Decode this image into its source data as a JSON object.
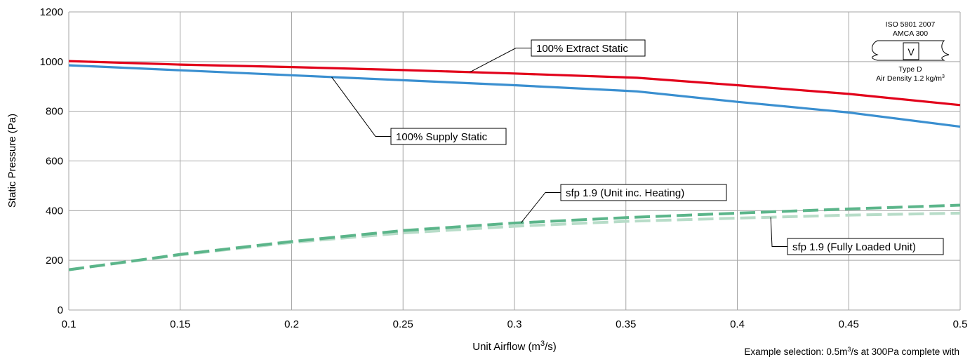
{
  "chart_data": {
    "type": "line",
    "xlabel": "Unit Airflow (m",
    "xlabel_sup": "3",
    "xlabel_suffix": "/s)",
    "ylabel": "Static Pressure (Pa)",
    "xlim": [
      0.1,
      0.5
    ],
    "ylim": [
      0,
      1200
    ],
    "x_ticks": [
      "0.1",
      "0.15",
      "0.2",
      "0.25",
      "0.3",
      "0.35",
      "0.4",
      "0.45",
      "0.5"
    ],
    "y_ticks": [
      "0",
      "200",
      "400",
      "600",
      "800",
      "1000",
      "1200"
    ],
    "grid": true,
    "series": [
      {
        "name": "100% Extract Static",
        "color": "#e2001a",
        "dash": "solid",
        "x": [
          0.1,
          0.15,
          0.2,
          0.25,
          0.3,
          0.355,
          0.4,
          0.45,
          0.5
        ],
        "y": [
          1002,
          988,
          978,
          966,
          952,
          935,
          905,
          870,
          825
        ]
      },
      {
        "name": "100% Supply Static",
        "color": "#3a8fd0",
        "dash": "solid",
        "x": [
          0.1,
          0.15,
          0.2,
          0.25,
          0.3,
          0.355,
          0.4,
          0.45,
          0.5
        ],
        "y": [
          985,
          965,
          945,
          925,
          905,
          880,
          838,
          795,
          738
        ]
      },
      {
        "name": "sfp 1.9 (Fully Loaded Unit)",
        "color": "#b7dcc8",
        "dash": "dashed",
        "x": [
          0.1,
          0.15,
          0.2,
          0.25,
          0.3,
          0.35,
          0.4,
          0.45,
          0.5
        ],
        "y": [
          162,
          222,
          272,
          310,
          337,
          357,
          370,
          382,
          390
        ]
      },
      {
        "name": "sfp 1.9 (Unit inc. Heating)",
        "color": "#5bb58a",
        "dash": "dashed",
        "x": [
          0.1,
          0.15,
          0.2,
          0.25,
          0.3,
          0.35,
          0.4,
          0.45,
          0.5
        ],
        "y": [
          162,
          224,
          276,
          320,
          350,
          372,
          390,
          407,
          422
        ]
      }
    ],
    "annotations": [
      {
        "text": "100% Extract Static",
        "series": 0,
        "anchor_x": 0.28
      },
      {
        "text": "100% Supply Static",
        "series": 1,
        "anchor_x": 0.218
      },
      {
        "text": "sfp 1.9 (Unit inc. Heating)",
        "series": 3,
        "anchor_x": 0.303
      },
      {
        "text": "sfp 1.9 (Fully Loaded Unit)",
        "series": 2,
        "anchor_x": 0.415
      }
    ],
    "badge": {
      "line1": "ISO 5801 2007",
      "line2": "AMCA 300",
      "symbol": "V",
      "line3": "Type D",
      "line4": "Air Density 1.2 kg/m",
      "line4_sup": "3"
    },
    "note": {
      "prefix": "Example selection: 0.5m",
      "sup": "3",
      "suffix": "/s at 300Pa complete with"
    }
  }
}
